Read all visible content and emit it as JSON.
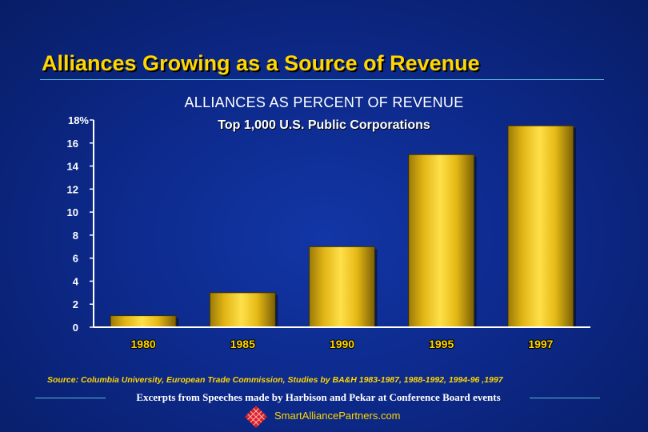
{
  "slide": {
    "title": "Alliances Growing as a Source of Revenue",
    "source": "Source: Columbia University, European Trade Commission, Studies by BA&H 1983-1987, 1988-1992, 1994-96 ,1997",
    "footer": "Excerpts from Speeches made by Harbison and Pekar at Conference Board events",
    "brand": "SmartAlliancePartners.com",
    "brand_logo_icon": "diamond-lattice-icon"
  },
  "colors": {
    "background": "#0d2a8c",
    "title": "#ffd600",
    "bar": "#f2c418",
    "axis": "#ffffff",
    "rule": "#5ab8d8"
  },
  "chart_data": {
    "type": "bar",
    "title": "ALLIANCES AS PERCENT OF REVENUE",
    "subtitle": "Top 1,000 U.S. Public Corporations",
    "categories": [
      "1980",
      "1985",
      "1990",
      "1995",
      "1997"
    ],
    "values": [
      1,
      3,
      7,
      15,
      17.5
    ],
    "ylim": [
      0,
      18
    ],
    "yticks": [
      0,
      2,
      4,
      6,
      8,
      10,
      12,
      14,
      16,
      18
    ],
    "ytick_labels": [
      "0",
      "2",
      "4",
      "6",
      "8",
      "10",
      "12",
      "14",
      "16",
      "18%"
    ],
    "xlabel": "",
    "ylabel": "",
    "grid": false,
    "legend": "none"
  }
}
